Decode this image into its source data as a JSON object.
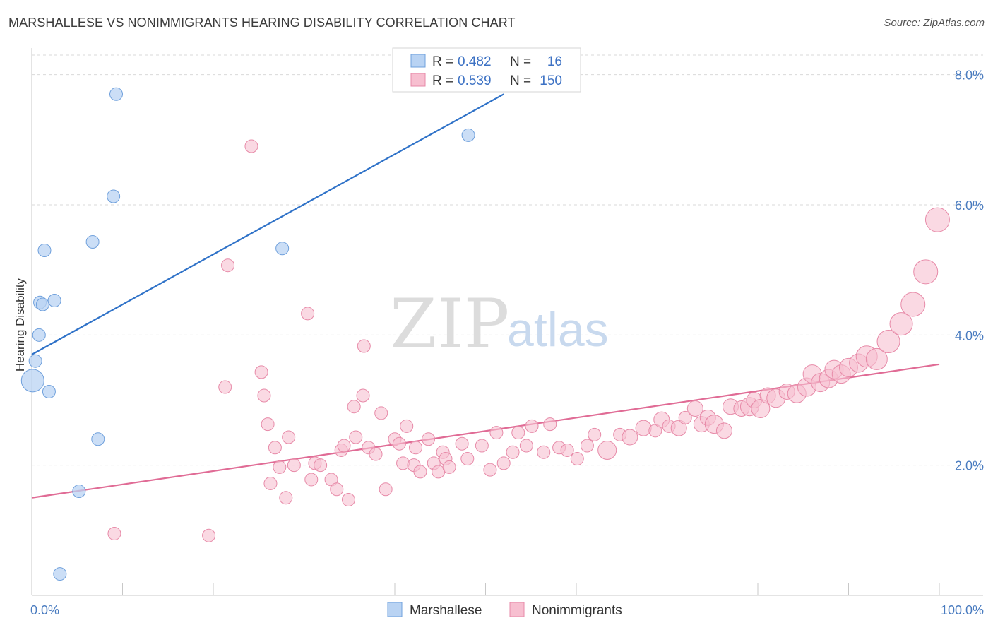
{
  "header": {
    "title": "MARSHALLESE VS NONIMMIGRANTS HEARING DISABILITY CORRELATION CHART",
    "source": "Source: ZipAtlas.com"
  },
  "watermark": {
    "zip": "ZIP",
    "atlas": "atlas"
  },
  "colors": {
    "marshallese_fill": "#b9d3f3",
    "marshallese_stroke": "#6fa0dc",
    "marshallese_line": "#2f72c8",
    "nonimm_fill": "#f7bfd0",
    "nonimm_stroke": "#e78aa8",
    "nonimm_line": "#e06b95",
    "tick_label": "#4a7cc0",
    "grid": "#d9d9d9"
  },
  "stats_legend": {
    "rows": [
      {
        "r_label": "R = ",
        "r_value": "0.482",
        "n_label": "N = ",
        "n_value": "16"
      },
      {
        "r_label": "R = ",
        "r_value": "0.539",
        "n_label": "N = ",
        "n_value": "150"
      }
    ]
  },
  "chart_data": {
    "type": "scatter",
    "title": "MARSHALLESE VS NONIMMIGRANTS HEARING DISABILITY CORRELATION CHART",
    "xlabel": "",
    "ylabel": "Hearing Disability",
    "xlim": [
      0,
      100
    ],
    "ylim": [
      0,
      8.3
    ],
    "x_tick_labels": [
      "0.0%",
      "100.0%"
    ],
    "y_ticks": [
      2,
      4,
      6,
      8
    ],
    "y_tick_labels": [
      "2.0%",
      "4.0%",
      "6.0%",
      "8.0%"
    ],
    "grid": true,
    "legend_position": "bottom-center",
    "series": [
      {
        "name": "Marshallese",
        "r": 0.482,
        "n": 16,
        "trend": {
          "x": [
            0,
            52
          ],
          "y": [
            3.7,
            7.7
          ]
        },
        "points": [
          {
            "x": 0.1,
            "y": 3.3,
            "s": 16
          },
          {
            "x": 0.4,
            "y": 3.6,
            "s": 9
          },
          {
            "x": 0.8,
            "y": 4.0,
            "s": 9
          },
          {
            "x": 0.9,
            "y": 4.5,
            "s": 9
          },
          {
            "x": 1.2,
            "y": 4.47,
            "s": 9
          },
          {
            "x": 1.4,
            "y": 5.3,
            "s": 9
          },
          {
            "x": 1.9,
            "y": 3.13,
            "s": 9
          },
          {
            "x": 2.5,
            "y": 4.53,
            "s": 9
          },
          {
            "x": 3.1,
            "y": 0.33,
            "s": 9
          },
          {
            "x": 5.2,
            "y": 1.6,
            "s": 9
          },
          {
            "x": 7.3,
            "y": 2.4,
            "s": 9
          },
          {
            "x": 6.7,
            "y": 5.43,
            "s": 9
          },
          {
            "x": 9.0,
            "y": 6.13,
            "s": 9
          },
          {
            "x": 9.3,
            "y": 7.7,
            "s": 9
          },
          {
            "x": 27.6,
            "y": 5.33,
            "s": 9
          },
          {
            "x": 48.1,
            "y": 7.07,
            "s": 9
          }
        ]
      },
      {
        "name": "Nonimmigrants",
        "r": 0.539,
        "n": 150,
        "trend": {
          "x": [
            0,
            100
          ],
          "y": [
            1.5,
            3.55
          ]
        },
        "points": [
          {
            "x": 9.1,
            "y": 0.95,
            "s": 9
          },
          {
            "x": 19.5,
            "y": 0.92,
            "s": 9
          },
          {
            "x": 21.3,
            "y": 3.2,
            "s": 9
          },
          {
            "x": 21.6,
            "y": 5.07,
            "s": 9
          },
          {
            "x": 24.2,
            "y": 6.9,
            "s": 9
          },
          {
            "x": 25.3,
            "y": 3.43,
            "s": 9
          },
          {
            "x": 25.6,
            "y": 3.07,
            "s": 9
          },
          {
            "x": 26.0,
            "y": 2.63,
            "s": 9
          },
          {
            "x": 26.3,
            "y": 1.72,
            "s": 9
          },
          {
            "x": 26.8,
            "y": 2.27,
            "s": 9
          },
          {
            "x": 27.3,
            "y": 1.97,
            "s": 9
          },
          {
            "x": 28.0,
            "y": 1.5,
            "s": 9
          },
          {
            "x": 28.3,
            "y": 2.43,
            "s": 9
          },
          {
            "x": 28.9,
            "y": 2.0,
            "s": 9
          },
          {
            "x": 30.4,
            "y": 4.33,
            "s": 9
          },
          {
            "x": 30.8,
            "y": 1.78,
            "s": 9
          },
          {
            "x": 31.2,
            "y": 2.03,
            "s": 9
          },
          {
            "x": 31.8,
            "y": 2.0,
            "s": 9
          },
          {
            "x": 33.0,
            "y": 1.78,
            "s": 9
          },
          {
            "x": 33.6,
            "y": 1.63,
            "s": 9
          },
          {
            "x": 34.1,
            "y": 2.23,
            "s": 9
          },
          {
            "x": 34.4,
            "y": 2.3,
            "s": 9
          },
          {
            "x": 34.9,
            "y": 1.47,
            "s": 9
          },
          {
            "x": 35.5,
            "y": 2.9,
            "s": 9
          },
          {
            "x": 35.7,
            "y": 2.43,
            "s": 9
          },
          {
            "x": 36.5,
            "y": 3.07,
            "s": 9
          },
          {
            "x": 36.6,
            "y": 3.83,
            "s": 9
          },
          {
            "x": 37.1,
            "y": 2.27,
            "s": 9
          },
          {
            "x": 37.9,
            "y": 2.17,
            "s": 9
          },
          {
            "x": 38.5,
            "y": 2.8,
            "s": 9
          },
          {
            "x": 39.0,
            "y": 1.63,
            "s": 9
          },
          {
            "x": 40.0,
            "y": 2.4,
            "s": 9
          },
          {
            "x": 40.5,
            "y": 2.33,
            "s": 9
          },
          {
            "x": 40.9,
            "y": 2.03,
            "s": 9
          },
          {
            "x": 41.3,
            "y": 2.6,
            "s": 9
          },
          {
            "x": 42.1,
            "y": 2.0,
            "s": 9
          },
          {
            "x": 42.3,
            "y": 2.27,
            "s": 9
          },
          {
            "x": 42.8,
            "y": 1.9,
            "s": 9
          },
          {
            "x": 43.7,
            "y": 2.4,
            "s": 9
          },
          {
            "x": 44.3,
            "y": 2.03,
            "s": 9
          },
          {
            "x": 44.8,
            "y": 1.9,
            "s": 9
          },
          {
            "x": 45.3,
            "y": 2.2,
            "s": 9
          },
          {
            "x": 45.6,
            "y": 2.1,
            "s": 9
          },
          {
            "x": 46.0,
            "y": 1.97,
            "s": 9
          },
          {
            "x": 47.4,
            "y": 2.33,
            "s": 9
          },
          {
            "x": 48.0,
            "y": 2.1,
            "s": 9
          },
          {
            "x": 49.6,
            "y": 2.3,
            "s": 9
          },
          {
            "x": 50.5,
            "y": 1.93,
            "s": 9
          },
          {
            "x": 51.2,
            "y": 2.5,
            "s": 9
          },
          {
            "x": 52.0,
            "y": 2.03,
            "s": 9
          },
          {
            "x": 53.0,
            "y": 2.2,
            "s": 9
          },
          {
            "x": 53.6,
            "y": 2.5,
            "s": 9
          },
          {
            "x": 54.5,
            "y": 2.3,
            "s": 9
          },
          {
            "x": 55.1,
            "y": 2.6,
            "s": 9
          },
          {
            "x": 56.4,
            "y": 2.2,
            "s": 9
          },
          {
            "x": 57.1,
            "y": 2.63,
            "s": 9
          },
          {
            "x": 58.1,
            "y": 2.27,
            "s": 9
          },
          {
            "x": 59.0,
            "y": 2.23,
            "s": 9
          },
          {
            "x": 60.1,
            "y": 2.1,
            "s": 9
          },
          {
            "x": 61.2,
            "y": 2.3,
            "s": 9
          },
          {
            "x": 62.0,
            "y": 2.47,
            "s": 9
          },
          {
            "x": 63.4,
            "y": 2.23,
            "s": 13
          },
          {
            "x": 64.8,
            "y": 2.47,
            "s": 9
          },
          {
            "x": 65.9,
            "y": 2.43,
            "s": 11
          },
          {
            "x": 67.4,
            "y": 2.57,
            "s": 11
          },
          {
            "x": 68.7,
            "y": 2.53,
            "s": 9
          },
          {
            "x": 69.4,
            "y": 2.7,
            "s": 11
          },
          {
            "x": 70.2,
            "y": 2.6,
            "s": 9
          },
          {
            "x": 71.3,
            "y": 2.57,
            "s": 11
          },
          {
            "x": 72.0,
            "y": 2.73,
            "s": 9
          },
          {
            "x": 73.1,
            "y": 2.87,
            "s": 11
          },
          {
            "x": 73.8,
            "y": 2.63,
            "s": 11
          },
          {
            "x": 74.5,
            "y": 2.73,
            "s": 11
          },
          {
            "x": 75.2,
            "y": 2.63,
            "s": 13
          },
          {
            "x": 76.3,
            "y": 2.53,
            "s": 11
          },
          {
            "x": 77.0,
            "y": 2.9,
            "s": 11
          },
          {
            "x": 78.2,
            "y": 2.87,
            "s": 11
          },
          {
            "x": 79.1,
            "y": 2.9,
            "s": 13
          },
          {
            "x": 79.6,
            "y": 3.0,
            "s": 11
          },
          {
            "x": 80.3,
            "y": 2.87,
            "s": 13
          },
          {
            "x": 81.1,
            "y": 3.07,
            "s": 11
          },
          {
            "x": 82.0,
            "y": 3.03,
            "s": 13
          },
          {
            "x": 83.2,
            "y": 3.13,
            "s": 11
          },
          {
            "x": 84.3,
            "y": 3.1,
            "s": 13
          },
          {
            "x": 85.4,
            "y": 3.2,
            "s": 13
          },
          {
            "x": 86.0,
            "y": 3.4,
            "s": 13
          },
          {
            "x": 86.9,
            "y": 3.27,
            "s": 13
          },
          {
            "x": 87.8,
            "y": 3.33,
            "s": 13
          },
          {
            "x": 88.4,
            "y": 3.47,
            "s": 13
          },
          {
            "x": 89.2,
            "y": 3.4,
            "s": 13
          },
          {
            "x": 90.0,
            "y": 3.5,
            "s": 13
          },
          {
            "x": 91.1,
            "y": 3.57,
            "s": 13
          },
          {
            "x": 92.0,
            "y": 3.67,
            "s": 15
          },
          {
            "x": 93.1,
            "y": 3.63,
            "s": 15
          },
          {
            "x": 94.4,
            "y": 3.9,
            "s": 16
          },
          {
            "x": 95.8,
            "y": 4.17,
            "s": 16
          },
          {
            "x": 97.1,
            "y": 4.47,
            "s": 17
          },
          {
            "x": 98.5,
            "y": 4.97,
            "s": 17
          },
          {
            "x": 99.8,
            "y": 5.77,
            "s": 17
          }
        ]
      }
    ]
  },
  "bottom_legend": {
    "items": [
      {
        "label": "Marshallese"
      },
      {
        "label": "Nonimmigrants"
      }
    ]
  }
}
